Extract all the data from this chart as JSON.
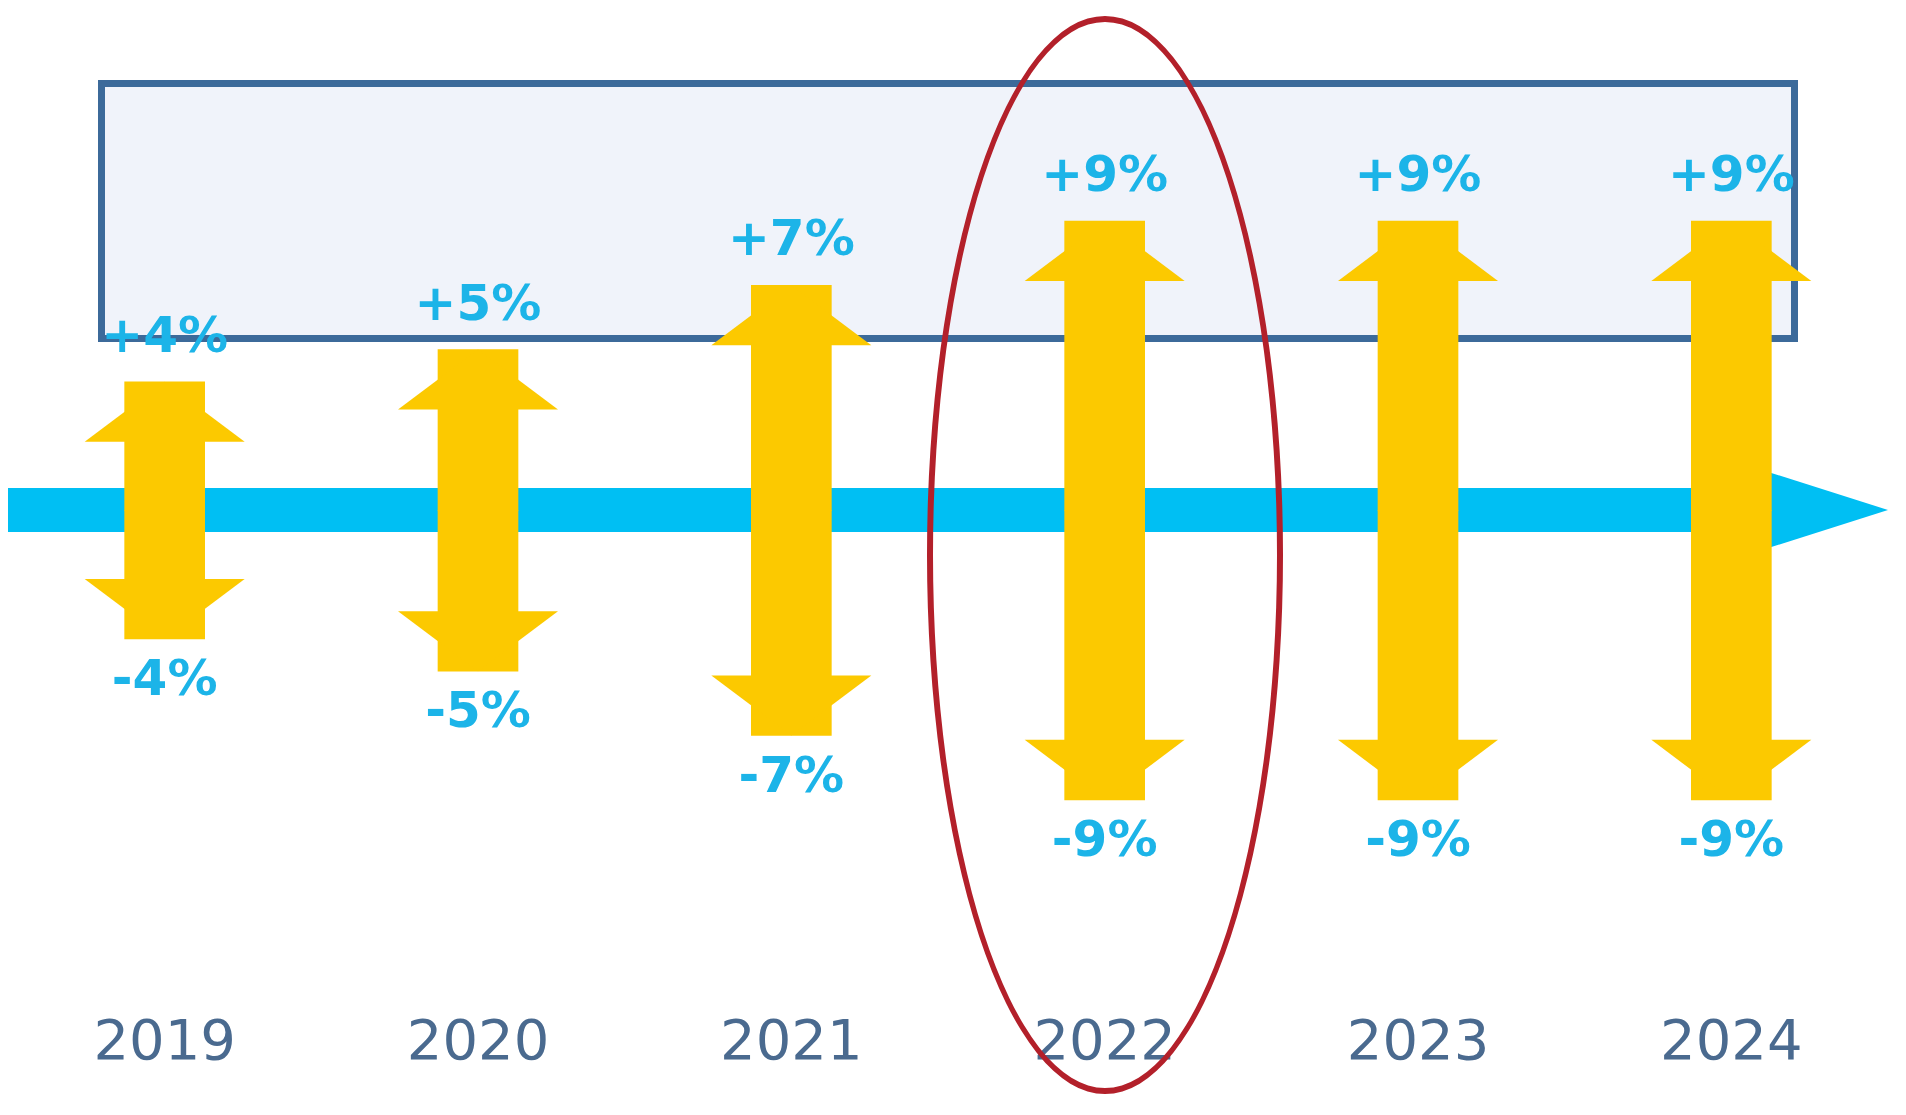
{
  "chart_data": {
    "type": "bar",
    "stacked": true,
    "categories": [
      "2019",
      "2020",
      "2021",
      "2022",
      "2023",
      "2024"
    ],
    "series": [
      {
        "color": "#fcc900",
        "values": [
          4,
          5,
          7,
          9,
          9,
          9
        ],
        "value_labels": [
          "+4%",
          "+5%",
          "+7%",
          "+9%",
          "+9%",
          "+9%"
        ]
      },
      {
        "color": "#fcc900",
        "values": [
          -4,
          -5,
          -7,
          -9,
          -9,
          -9
        ],
        "value_labels": [
          "-4%",
          "-5%",
          "-7%",
          "-9%",
          "-9%",
          "-9%"
        ]
      }
    ],
    "tick_labels": "x",
    "grid": false,
    "legend": false
  }
}
